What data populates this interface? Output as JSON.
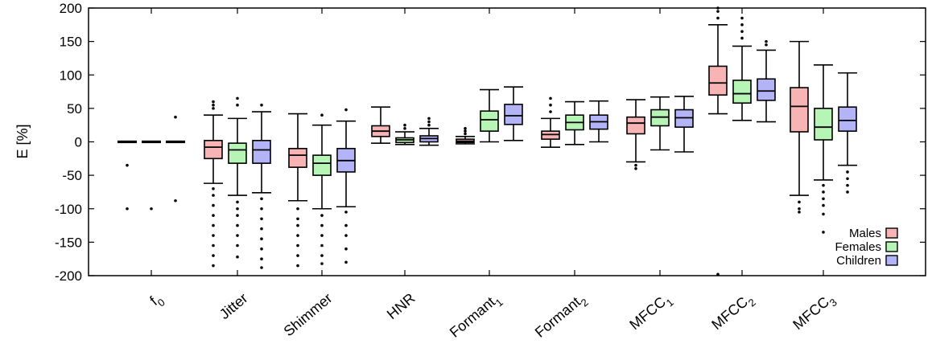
{
  "chart_data": {
    "type": "boxplot",
    "title": "",
    "xlabel": "",
    "ylabel": "E [%]",
    "ylim": [
      -200,
      200
    ],
    "yticks": [
      200,
      150,
      100,
      50,
      0,
      -50,
      -100,
      -150,
      -200
    ],
    "grid": false,
    "legend_position": "bottom-right",
    "categories": [
      {
        "base": "f",
        "sub": "0"
      },
      {
        "base": "Jitter",
        "sub": ""
      },
      {
        "base": "Shimmer",
        "sub": ""
      },
      {
        "base": "HNR",
        "sub": ""
      },
      {
        "base": "Formant",
        "sub": "1"
      },
      {
        "base": "Formant",
        "sub": "2"
      },
      {
        "base": "MFCC",
        "sub": "1"
      },
      {
        "base": "MFCC",
        "sub": "2"
      },
      {
        "base": "MFCC",
        "sub": "3"
      }
    ],
    "series": [
      {
        "name": "Males",
        "color": "#f8b4b4",
        "boxes": [
          {
            "whisker_low": -1,
            "q1": -0.5,
            "median": 0,
            "q3": 0.5,
            "whisker_high": 1,
            "outliers": [
              -100,
              -35
            ]
          },
          {
            "whisker_low": -62,
            "q1": -25,
            "median": -8,
            "q3": 2,
            "whisker_high": 40,
            "outliers": [
              60,
              55,
              50,
              -70,
              -80,
              -95,
              -110,
              -125,
              -140,
              -155,
              -170,
              -185
            ]
          },
          {
            "whisker_low": -88,
            "q1": -38,
            "median": -20,
            "q3": -10,
            "whisker_high": 42,
            "outliers": [
              -100,
              -115,
              -125,
              -140,
              -155,
              -170,
              -185
            ]
          },
          {
            "whisker_low": -2,
            "q1": 8,
            "median": 16,
            "q3": 24,
            "whisker_high": 52,
            "outliers": []
          },
          {
            "whisker_low": -3,
            "q1": -1,
            "median": 1,
            "q3": 4,
            "whisker_high": 8,
            "outliers": [
              12,
              16,
              20
            ]
          },
          {
            "whisker_low": -8,
            "q1": 4,
            "median": 11,
            "q3": 16,
            "whisker_high": 35,
            "outliers": [
              45,
              55,
              65
            ]
          },
          {
            "whisker_low": -30,
            "q1": 12,
            "median": 28,
            "q3": 37,
            "whisker_high": 63,
            "outliers": [
              -35,
              -40
            ]
          },
          {
            "whisker_low": 42,
            "q1": 70,
            "median": 88,
            "q3": 113,
            "whisker_high": 175,
            "outliers": [
              185,
              195,
              200,
              -198
            ]
          },
          {
            "whisker_low": -80,
            "q1": 15,
            "median": 53,
            "q3": 81,
            "whisker_high": 150,
            "outliers": [
              -90,
              -100,
              -105
            ]
          }
        ]
      },
      {
        "name": "Females",
        "color": "#b6f5b6",
        "boxes": [
          {
            "whisker_low": -1,
            "q1": -0.5,
            "median": 0,
            "q3": 0.5,
            "whisker_high": 1,
            "outliers": [
              -100
            ]
          },
          {
            "whisker_low": -80,
            "q1": -32,
            "median": -12,
            "q3": -2,
            "whisker_high": 35,
            "outliers": [
              65,
              55,
              -90,
              -100,
              -110,
              -125,
              -140,
              -155,
              -172
            ]
          },
          {
            "whisker_low": -100,
            "q1": -50,
            "median": -32,
            "q3": -20,
            "whisker_high": 25,
            "outliers": [
              40,
              -110,
              -125,
              -140,
              -155,
              -170,
              -182
            ]
          },
          {
            "whisker_low": -4,
            "q1": -1,
            "median": 3,
            "q3": 6,
            "whisker_high": 15,
            "outliers": [
              20,
              25
            ]
          },
          {
            "whisker_low": 0,
            "q1": 16,
            "median": 33,
            "q3": 46,
            "whisker_high": 78,
            "outliers": []
          },
          {
            "whisker_low": -4,
            "q1": 18,
            "median": 29,
            "q3": 40,
            "whisker_high": 60,
            "outliers": []
          },
          {
            "whisker_low": -12,
            "q1": 24,
            "median": 37,
            "q3": 48,
            "whisker_high": 67,
            "outliers": []
          },
          {
            "whisker_low": 32,
            "q1": 58,
            "median": 72,
            "q3": 92,
            "whisker_high": 143,
            "outliers": [
              155,
              165,
              175,
              185
            ]
          },
          {
            "whisker_low": -57,
            "q1": 3,
            "median": 22,
            "q3": 50,
            "whisker_high": 115,
            "outliers": [
              -65,
              -75,
              -85,
              -95,
              -108,
              -135
            ]
          }
        ]
      },
      {
        "name": "Children",
        "color": "#b3b3f8",
        "boxes": [
          {
            "whisker_low": -1,
            "q1": -0.5,
            "median": 0,
            "q3": 0.5,
            "whisker_high": 1,
            "outliers": [
              37,
              -88
            ]
          },
          {
            "whisker_low": -76,
            "q1": -32,
            "median": -12,
            "q3": 2,
            "whisker_high": 45,
            "outliers": [
              55,
              -85,
              -100,
              -115,
              -130,
              -145,
              -160,
              -175,
              -188
            ]
          },
          {
            "whisker_low": -97,
            "q1": -45,
            "median": -28,
            "q3": -10,
            "whisker_high": 31,
            "outliers": [
              48,
              -105,
              -125,
              -140,
              -160,
              -180
            ]
          },
          {
            "whisker_low": -5,
            "q1": 0,
            "median": 5,
            "q3": 9,
            "whisker_high": 20,
            "outliers": [
              25,
              30,
              35
            ]
          },
          {
            "whisker_low": 2,
            "q1": 26,
            "median": 39,
            "q3": 56,
            "whisker_high": 82,
            "outliers": []
          },
          {
            "whisker_low": 0,
            "q1": 19,
            "median": 30,
            "q3": 40,
            "whisker_high": 61,
            "outliers": []
          },
          {
            "whisker_low": -15,
            "q1": 22,
            "median": 36,
            "q3": 48,
            "whisker_high": 68,
            "outliers": []
          },
          {
            "whisker_low": 30,
            "q1": 62,
            "median": 76,
            "q3": 94,
            "whisker_high": 137,
            "outliers": [
              145,
              150
            ]
          },
          {
            "whisker_low": -35,
            "q1": 16,
            "median": 32,
            "q3": 52,
            "whisker_high": 103,
            "outliers": [
              -45,
              -55,
              -65,
              -75
            ]
          }
        ]
      }
    ]
  }
}
